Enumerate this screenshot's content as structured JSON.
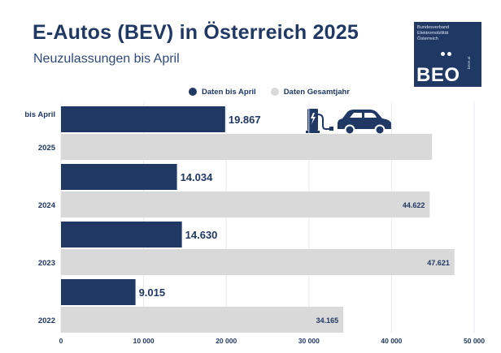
{
  "header": {
    "title": "E-Autos (BEV) in Österreich 2025",
    "subtitle": "Neuzulassungen bis April"
  },
  "logo": {
    "org_text": "Bundesverband\nElektromobilität\nÖsterreich",
    "text": "BEO",
    "url": "beoe.at",
    "color": "#1f3864"
  },
  "legend": {
    "items": [
      {
        "label": "Daten bis April",
        "color": "#1f3864"
      },
      {
        "label": "Daten Gesamtjahr",
        "color": "#d9d9d9"
      }
    ]
  },
  "icons": [
    "charging-station-icon",
    "car-icon"
  ],
  "chart_data": {
    "type": "bar",
    "orientation": "horizontal",
    "categories": [
      "2025",
      "2024",
      "2023",
      "2022"
    ],
    "category_prefix": {
      "2025": "bis April"
    },
    "series": [
      {
        "name": "Daten bis April",
        "color": "#1f3864",
        "values": [
          19867,
          14034,
          14630,
          9015
        ],
        "labels": [
          "19.867",
          "14.034",
          "14.630",
          "9.015"
        ]
      },
      {
        "name": "Daten Gesamtjahr",
        "color": "#d9d9d9",
        "values": [
          44900,
          44622,
          47621,
          34165
        ],
        "labels": [
          "",
          "44.622",
          "47.621",
          "34.165"
        ]
      }
    ],
    "xlim": [
      0,
      50000
    ],
    "xticks": [
      0,
      10000,
      20000,
      30000,
      40000,
      50000
    ],
    "xtick_labels": [
      "0",
      "10 000",
      "20 000",
      "30 000",
      "40 000",
      "50 000"
    ],
    "grid": true,
    "legend_position": "top"
  }
}
